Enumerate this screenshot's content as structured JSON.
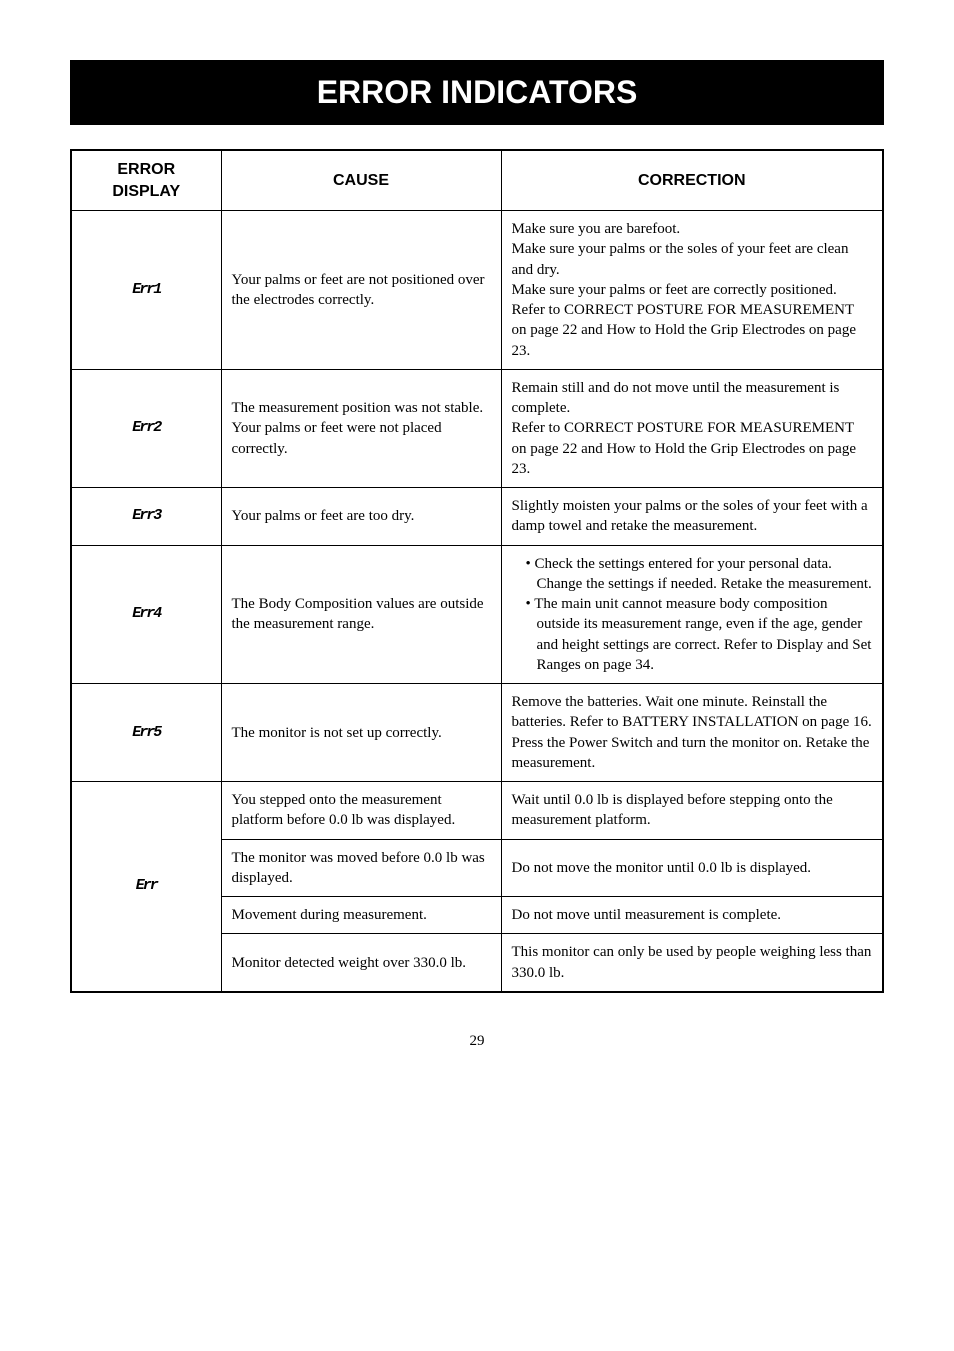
{
  "title": "ERROR INDICATORS",
  "headers": {
    "display": "ERROR DISPLAY",
    "cause": "CAUSE",
    "correction": "CORRECTION"
  },
  "rows": [
    {
      "glyph": "Err1",
      "cause": "Your palms or feet are not positioned over the electrodes correctly.",
      "correction": "Make sure you are barefoot.\nMake sure your palms or the soles of your feet are clean and dry.\nMake sure your palms or feet are correctly positioned.\nRefer to CORRECT POSTURE FOR MEASUREMENT on page 22 and How to Hold the Grip Electrodes on page 23."
    },
    {
      "glyph": "Err2",
      "cause": "The measurement position was not stable.\nYour palms or feet were not placed correctly.",
      "correction": "Remain still and do not move until the measurement is complete.\nRefer to CORRECT POSTURE FOR MEASUREMENT on page 22 and How to Hold the Grip Electrodes on page 23."
    },
    {
      "glyph": "Err3",
      "cause": "Your palms or feet are too dry.",
      "correction": "Slightly moisten your palms or the soles of your feet with a damp towel and retake the measurement."
    },
    {
      "glyph": "Err4",
      "cause": "The Body Composition values are outside the measurement range.",
      "correction_list": [
        "Check the settings entered for your personal data. Change the settings if needed. Retake the measurement.",
        "The main unit cannot measure body composition outside its measurement range, even if the age, gender and height settings are correct. Refer to Display and Set Ranges on page 34."
      ]
    },
    {
      "glyph": "Err5",
      "cause": "The monitor is not set up correctly.",
      "correction": "Remove the batteries. Wait one minute. Reinstall the batteries. Refer to BATTERY INSTALLATION on page 16.\nPress the Power Switch and turn the monitor on. Retake the measurement."
    }
  ],
  "err_group": {
    "glyph": "Err",
    "subrows": [
      {
        "cause": "You stepped onto the measurement platform before 0.0 lb was displayed.",
        "correction": "Wait until 0.0 lb is displayed before stepping onto the measurement platform."
      },
      {
        "cause": "The monitor was moved before 0.0 lb was displayed.",
        "correction": "Do not move the monitor until 0.0 lb is displayed."
      },
      {
        "cause": "Movement during measurement.",
        "correction": "Do not move until measurement is complete."
      },
      {
        "cause": "Monitor detected weight over 330.0 lb.",
        "correction": "This monitor can only be used by people weighing less than 330.0 lb."
      }
    ]
  },
  "page_number": "29",
  "style": {
    "title_bg": "#000000",
    "title_fg": "#ffffff",
    "body_font": "Times New Roman",
    "title_font": "Arial",
    "title_fontsize": 32,
    "header_fontsize": 16,
    "cell_fontsize": 15,
    "glyph_fontsize": 40,
    "border_color": "#000000"
  }
}
